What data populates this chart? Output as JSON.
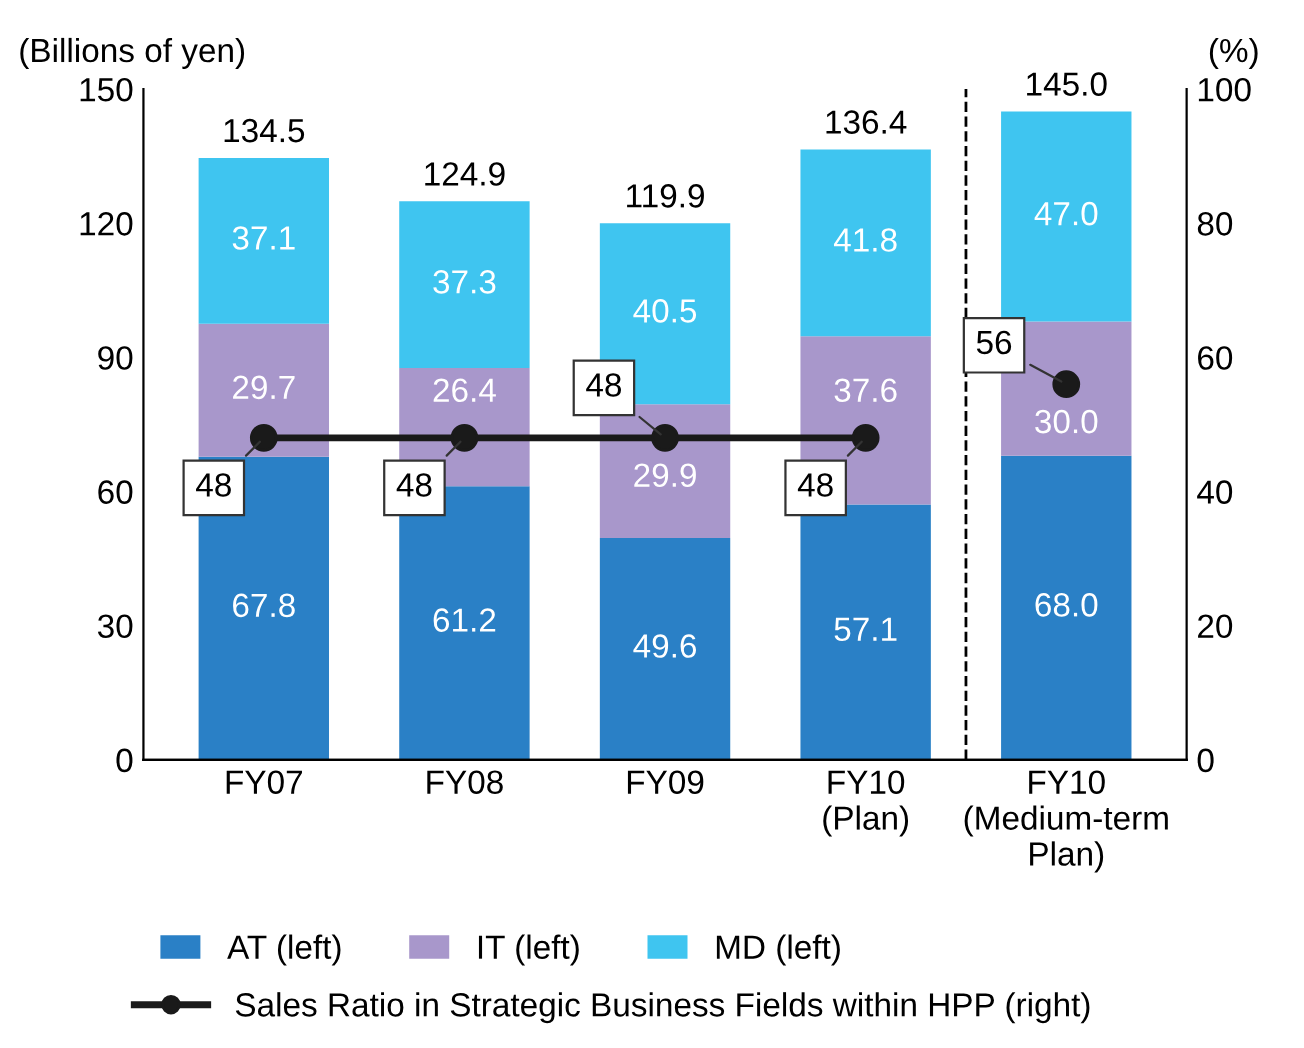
{
  "chart_data": {
    "type": "bar",
    "stacked": true,
    "categories": [
      "FY07",
      "FY08",
      "FY09",
      "FY10\n(Plan)",
      "FY10\n(Medium-term\nPlan)"
    ],
    "series": [
      {
        "name": "AT (left)",
        "color": "#2a80c6",
        "values": [
          67.8,
          61.2,
          49.6,
          57.1,
          68.0
        ],
        "value_labels": [
          "67.8",
          "61.2",
          "49.6",
          "57.1",
          "68.0"
        ]
      },
      {
        "name": "IT (left)",
        "color": "#a897cb",
        "values": [
          29.7,
          26.4,
          29.9,
          37.6,
          30.0
        ],
        "value_labels": [
          "29.7",
          "26.4",
          "29.9",
          "37.6",
          "30.0"
        ]
      },
      {
        "name": "MD (left)",
        "color": "#3fc5f0",
        "values": [
          37.1,
          37.3,
          40.5,
          41.8,
          47.0
        ],
        "value_labels": [
          "37.1",
          "37.3",
          "40.5",
          "41.8",
          "47.0"
        ]
      },
      {
        "name": "Sales Ratio in Strategic Business Fields within HPP (right)",
        "type": "line",
        "axis": "y2",
        "color": "#1a1a1a",
        "marker": "circle",
        "values": [
          48,
          48,
          48,
          48,
          null
        ]
      },
      {
        "type": "line",
        "axis": "y2",
        "color": "#1a1a1a",
        "marker": "circle",
        "values": [
          null,
          null,
          null,
          null,
          56
        ]
      }
    ],
    "totals": [
      "134.5",
      "124.9",
      "119.9",
      "136.4",
      "145.0"
    ],
    "data_labels": true,
    "ylabel": "(Billions of yen)",
    "y2label": "(%)",
    "ylim": [
      0,
      150
    ],
    "yticks": [
      0,
      30,
      60,
      90,
      120,
      150
    ],
    "y2lim": [
      0,
      100
    ],
    "y2ticks": [
      0,
      20,
      40,
      60,
      80,
      100
    ],
    "grid": false,
    "legend": "bottom"
  }
}
